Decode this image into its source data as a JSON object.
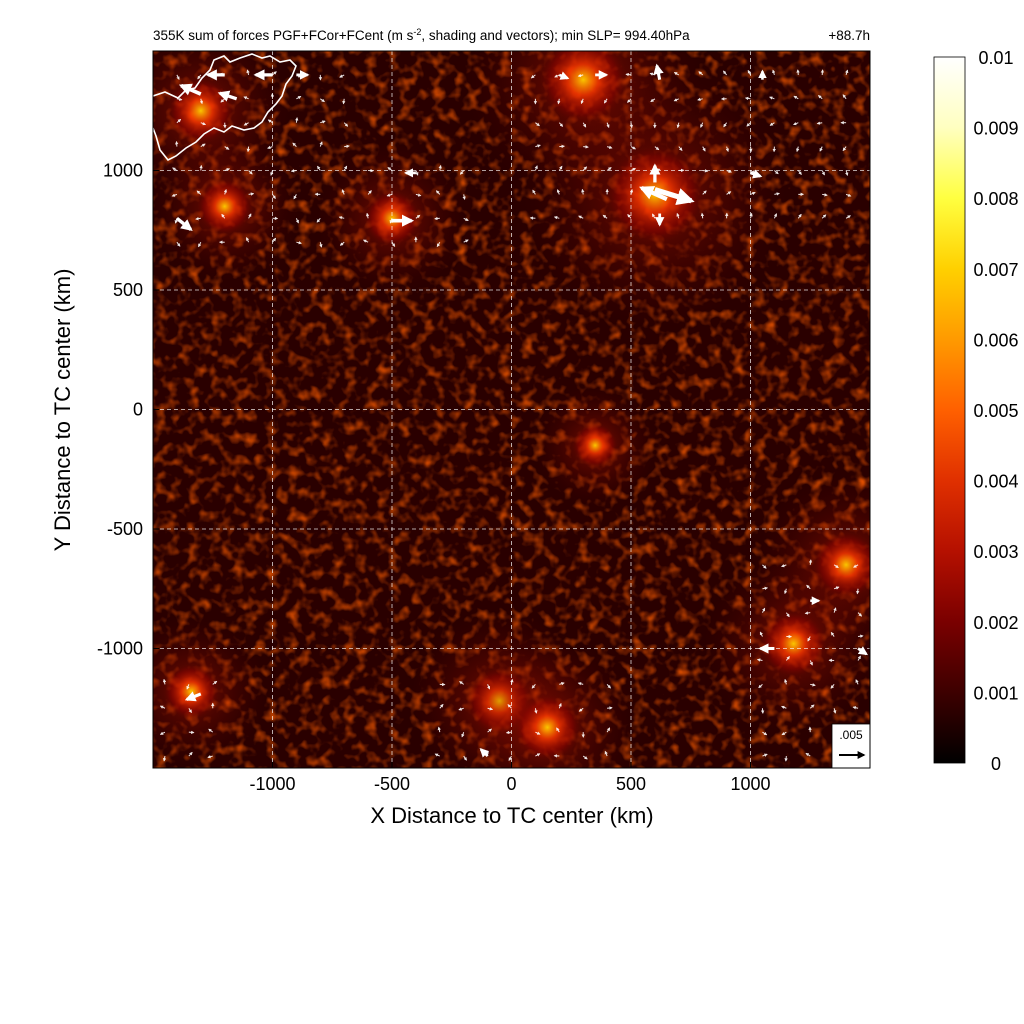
{
  "chart_data": {
    "type": "heatmap",
    "title": "355K sum of forces PGF+FCor+FCent (m s-2, shading and vectors); min SLP= 994.40hPa",
    "title_parts": {
      "before_superscript": "355K sum of forces PGF+FCor+FCent (m s",
      "superscript": "-2",
      "after_superscript": ", shading and vectors); min SLP= 994.40hPa"
    },
    "forecast_time": "+88.7h",
    "xlabel": "X Distance to TC center (km)",
    "ylabel": "Y Distance to TC center (km)",
    "xlim": [
      -1500,
      1500
    ],
    "ylim": [
      -1500,
      1500
    ],
    "x_ticks": [
      -1000,
      -500,
      0,
      500,
      1000
    ],
    "y_ticks": [
      -1000,
      -500,
      0,
      500,
      1000
    ],
    "grid": true,
    "colorbar": {
      "min": 0,
      "max": 0.01,
      "ticks": [
        "0.01",
        "0.009",
        "0.008",
        "0.007",
        "0.006",
        "0.005",
        "0.004",
        "0.003",
        "0.002",
        "0.001",
        "0"
      ],
      "colormap": [
        "#000000",
        "#3d0000",
        "#7a0000",
        "#b51000",
        "#e03000",
        "#ff6000",
        "#ff9a00",
        "#ffd000",
        "#ffff40",
        "#ffffc0",
        "#ffffff"
      ]
    },
    "reference_vector": {
      "label": ".005",
      "magnitude": 0.005
    },
    "hotspots": [
      {
        "x": 600,
        "y": 900,
        "value": 0.007
      },
      {
        "x": 300,
        "y": 1380,
        "value": 0.006
      },
      {
        "x": -1300,
        "y": 1250,
        "value": 0.004
      },
      {
        "x": -1200,
        "y": 850,
        "value": 0.003
      },
      {
        "x": -500,
        "y": 800,
        "value": 0.003
      },
      {
        "x": 1400,
        "y": -650,
        "value": 0.004
      },
      {
        "x": 1180,
        "y": -980,
        "value": 0.004
      },
      {
        "x": -50,
        "y": -1220,
        "value": 0.004
      },
      {
        "x": 150,
        "y": -1330,
        "value": 0.004
      },
      {
        "x": -1340,
        "y": -1180,
        "value": 0.003
      },
      {
        "x": 350,
        "y": -150,
        "value": 0.002
      }
    ],
    "vectors": [
      {
        "x": -1200,
        "y": 1400,
        "u": -0.003,
        "v": 0.0
      },
      {
        "x": -1000,
        "y": 1400,
        "u": -0.003,
        "v": 0.0
      },
      {
        "x": -900,
        "y": 1400,
        "u": 0.002,
        "v": 0.0
      },
      {
        "x": -1300,
        "y": 1320,
        "u": -0.0035,
        "v": 0.0015
      },
      {
        "x": -1150,
        "y": 1300,
        "u": -0.003,
        "v": 0.001
      },
      {
        "x": -1400,
        "y": 800,
        "u": 0.0025,
        "v": -0.002
      },
      {
        "x": -500,
        "y": 790,
        "u": 0.0035,
        "v": 0.0
      },
      {
        "x": -400,
        "y": 990,
        "u": -0.0018,
        "v": 0.0
      },
      {
        "x": 200,
        "y": 1400,
        "u": 0.0015,
        "v": -0.0006
      },
      {
        "x": 350,
        "y": 1400,
        "u": 0.002,
        "v": 0.0
      },
      {
        "x": 620,
        "y": 1380,
        "u": -0.0005,
        "v": 0.0025
      },
      {
        "x": 600,
        "y": 950,
        "u": 0.0,
        "v": 0.003
      },
      {
        "x": 600,
        "y": 920,
        "u": 0.0065,
        "v": -0.002
      },
      {
        "x": 650,
        "y": 880,
        "u": -0.0045,
        "v": 0.002
      },
      {
        "x": 620,
        "y": 820,
        "u": 0.0,
        "v": -0.002
      },
      {
        "x": 1050,
        "y": 1380,
        "u": 0.0,
        "v": 0.0015
      },
      {
        "x": 1000,
        "y": 990,
        "u": 0.0018,
        "v": -0.0006
      },
      {
        "x": 1100,
        "y": -1000,
        "u": -0.0025,
        "v": 0.0
      },
      {
        "x": -1300,
        "y": -1190,
        "u": -0.0025,
        "v": -0.001
      },
      {
        "x": 1250,
        "y": -800,
        "u": 0.0015,
        "v": 0.0
      },
      {
        "x": 1450,
        "y": -1000,
        "u": 0.0015,
        "v": -0.001
      },
      {
        "x": -100,
        "y": -1450,
        "u": -0.0012,
        "v": 0.0012
      }
    ],
    "coastline_label": "land outline (upper left)"
  },
  "colors": {
    "grid": "#ffffff",
    "vectors": "#ffffff",
    "coastline": "#ffffff",
    "frame": "#000000"
  }
}
